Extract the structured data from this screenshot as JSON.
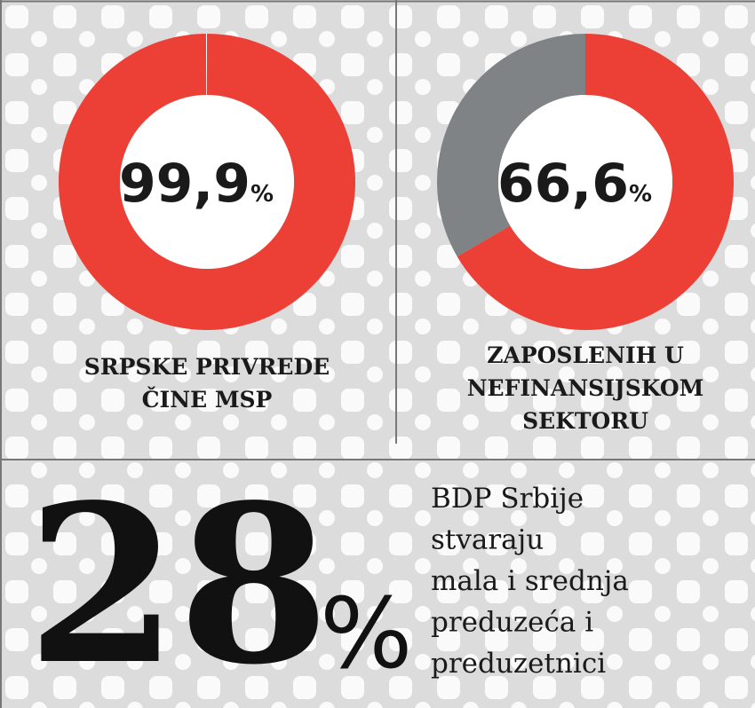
{
  "chart_data": [
    {
      "type": "donut",
      "values": [
        99.9,
        0.1
      ],
      "colors": [
        "#ec3f36",
        "#ffffff"
      ],
      "center_label": "99,9",
      "center_unit": "%",
      "title_lines": [
        "SRPSKE PRIVREDE",
        "ČINE MSP"
      ]
    },
    {
      "type": "donut",
      "values": [
        66.6,
        33.4
      ],
      "colors": [
        "#ec3f36",
        "#7f8385"
      ],
      "center_label": "66,6",
      "center_unit": "%",
      "title_lines": [
        "ZAPOSLENIH U",
        "NEFINANSIJSKOM",
        "SEKTORU"
      ]
    }
  ],
  "highlight": {
    "value": 28,
    "unit": "%",
    "text_lines": [
      "BDP Srbije",
      "stvaraju",
      "mala i srednja",
      "preduzeća i",
      "preduzetnici"
    ]
  }
}
